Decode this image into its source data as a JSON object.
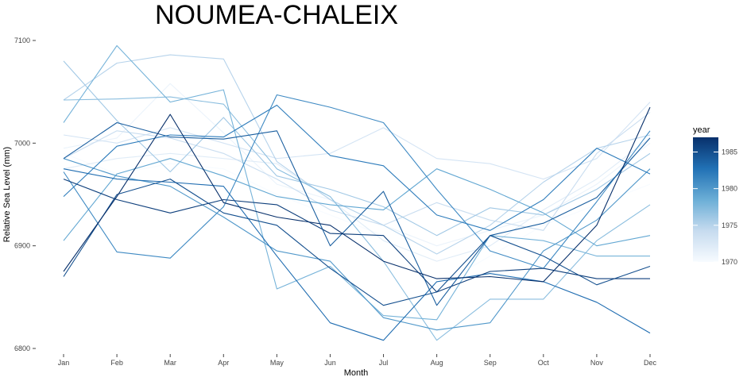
{
  "chart_data": {
    "type": "line",
    "title": "NOUMEA-CHALEIX",
    "xlabel": "Month",
    "ylabel": "Relative Sea Level (mm)",
    "categories": [
      "Jan",
      "Feb",
      "Mar",
      "Apr",
      "May",
      "Jun",
      "Jul",
      "Aug",
      "Sep",
      "Oct",
      "Nov",
      "Dec"
    ],
    "y_ticks": [
      6800,
      6900,
      7000,
      7100
    ],
    "ylim": [
      6795,
      7105
    ],
    "grid": false,
    "legend": {
      "title": "year",
      "position": "right",
      "type": "colorbar",
      "ticks": [
        1970,
        1975,
        1980,
        1985
      ],
      "range": [
        1970,
        1987
      ],
      "colors": [
        "#f7fbff",
        "#c6dbef",
        "#6baed6",
        "#2171b5",
        "#08306b"
      ]
    },
    "series": [
      {
        "year": 1970,
        "values": [
          6990,
          6970,
          6980,
          6975,
          6950,
          6930,
          6910,
          6860,
          6890,
          6920,
          6940,
          6960
        ]
      },
      {
        "year": 1971,
        "values": [
          6995,
          7005,
          7058,
          7010,
          6960,
          6945,
          6920,
          6900,
          6915,
          6930,
          6960,
          7000
        ]
      },
      {
        "year": 1972,
        "values": [
          6975,
          6985,
          6990,
          6985,
          6980,
          6945,
          6905,
          6885,
          6900,
          6935,
          6965,
          7005
        ]
      },
      {
        "year": 1973,
        "values": [
          7008,
          7000,
          7015,
          7000,
          6985,
          6990,
          7015,
          6985,
          6980,
          6965,
          6985,
          7040
        ]
      },
      {
        "year": 1974,
        "values": [
          6985,
          7012,
          7005,
          6990,
          6965,
          6935,
          6920,
          6942,
          6925,
          6915,
          6990,
          7030
        ]
      },
      {
        "year": 1975,
        "values": [
          7042,
          7078,
          7086,
          7082,
          6982,
          6945,
          6920,
          6892,
          6920,
          6962,
          6995,
          7008
        ]
      },
      {
        "year": 1976,
        "values": [
          7080,
          7022,
          6972,
          7025,
          6968,
          6955,
          6938,
          6910,
          6937,
          6930,
          6955,
          6990
        ]
      },
      {
        "year": 1977,
        "values": [
          7042,
          7043,
          7045,
          7038,
          6975,
          6948,
          6885,
          6808,
          6848,
          6848,
          6905,
          6940
        ]
      },
      {
        "year": 1978,
        "values": [
          7020,
          7095,
          7040,
          7052,
          6858,
          6880,
          6832,
          6828,
          6910,
          6905,
          6890,
          6890
        ]
      },
      {
        "year": 1979,
        "values": [
          6905,
          6970,
          6985,
          6968,
          6948,
          6940,
          6935,
          6975,
          6955,
          6932,
          6900,
          6910
        ]
      },
      {
        "year": 1980,
        "values": [
          6985,
          6968,
          6958,
          6928,
          6895,
          6885,
          6830,
          6818,
          6825,
          6895,
          6925,
          6975
        ]
      },
      {
        "year": 1981,
        "values": [
          6972,
          6894,
          6888,
          6938,
          7047,
          7035,
          7020,
          6955,
          6895,
          6878,
          6943,
          7012
        ]
      },
      {
        "year": 1982,
        "values": [
          6948,
          6997,
          7008,
          7006,
          7037,
          6988,
          6978,
          6930,
          6915,
          6945,
          6995,
          6970
        ]
      },
      {
        "year": 1983,
        "values": [
          6975,
          6965,
          6962,
          6958,
          6890,
          6825,
          6808,
          6865,
          6873,
          6865,
          6845,
          6815
        ]
      },
      {
        "year": 1984,
        "values": [
          6985,
          7020,
          7006,
          7004,
          7012,
          6900,
          6953,
          6842,
          6910,
          6922,
          6947,
          7005
        ]
      },
      {
        "year": 1985,
        "values": [
          6870,
          6950,
          6965,
          6932,
          6920,
          6878,
          6842,
          6855,
          6910,
          6890,
          6862,
          6880
        ]
      },
      {
        "year": 1986,
        "values": [
          6965,
          6945,
          6932,
          6945,
          6940,
          6912,
          6910,
          6855,
          6875,
          6878,
          6868,
          6868
        ]
      },
      {
        "year": 1987,
        "values": [
          6875,
          6948,
          7028,
          6942,
          6928,
          6920,
          6885,
          6868,
          6870,
          6865,
          6920,
          7035
        ]
      }
    ]
  }
}
